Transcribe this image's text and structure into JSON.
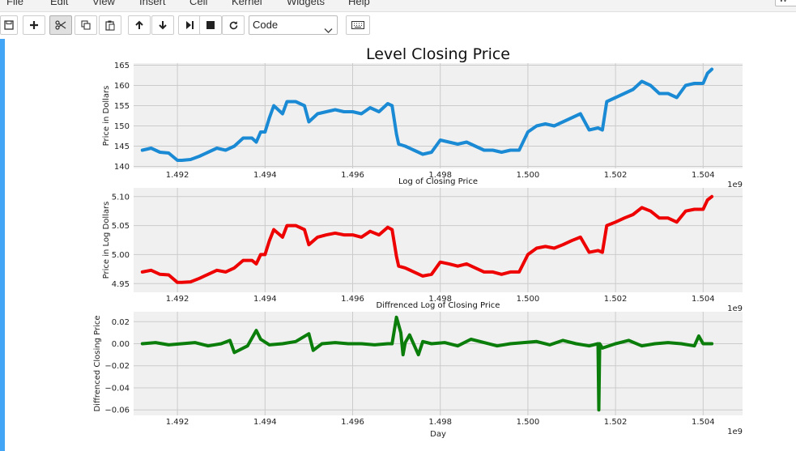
{
  "menu": {
    "items": [
      "File",
      "Edit",
      "View",
      "Insert",
      "Cell",
      "Kernel",
      "Widgets",
      "Help"
    ],
    "kernel_indicator": "W"
  },
  "toolbar": {
    "buttons": [
      "save-icon",
      "plus-icon",
      "cut-icon",
      "copy-icon",
      "paste-icon",
      "arrow-up-icon",
      "arrow-down-icon",
      "step-forward-icon",
      "stop-icon",
      "restart-icon",
      "keyboard-icon"
    ],
    "cell_type": "Code"
  },
  "colors": {
    "panel1": "#1a8ad4",
    "panel2": "#ee0000",
    "panel3": "#0a7d0a",
    "axes_bg": "#f0f0f0",
    "grid": "#cbcbcb",
    "cell_bar": "#42a5f5"
  },
  "chart_data": [
    {
      "type": "line",
      "title": "Level Closing Price",
      "xlabel": "",
      "ylabel": "Price in Dollars",
      "x_offset_label": "1e9",
      "xlim": [
        1491000000,
        1504900000
      ],
      "ylim": [
        139.5,
        165.5
      ],
      "xticks": [
        1492000000,
        1494000000,
        1496000000,
        1498000000,
        1500000000,
        1502000000,
        1504000000
      ],
      "xtick_labels": [
        "1.492",
        "1.494",
        "1.496",
        "1.498",
        "1.500",
        "1.502",
        "1.504"
      ],
      "yticks": [
        140,
        145,
        150,
        155,
        160,
        165
      ],
      "ytick_labels": [
        "140",
        "145",
        "150",
        "155",
        "160",
        "165"
      ],
      "grid": true,
      "x": [
        1491200000,
        1491400000,
        1491600000,
        1491800000,
        1492000000,
        1492100000,
        1492300000,
        1492500000,
        1492700000,
        1492900000,
        1493100000,
        1493300000,
        1493500000,
        1493700000,
        1493800000,
        1493900000,
        1494000000,
        1494100000,
        1494200000,
        1494400000,
        1494500000,
        1494700000,
        1494900000,
        1495000000,
        1495200000,
        1495400000,
        1495600000,
        1495800000,
        1496000000,
        1496200000,
        1496400000,
        1496600000,
        1496800000,
        1496900000,
        1497000000,
        1497050000,
        1497200000,
        1497400000,
        1497600000,
        1497800000,
        1498000000,
        1498200000,
        1498400000,
        1498600000,
        1498800000,
        1499000000,
        1499200000,
        1499400000,
        1499600000,
        1499800000,
        1500000000,
        1500200000,
        1500400000,
        1500600000,
        1500800000,
        1501000000,
        1501200000,
        1501400000,
        1501600000,
        1501700000,
        1501800000,
        1502000000,
        1502200000,
        1502400000,
        1502600000,
        1502800000,
        1503000000,
        1503200000,
        1503400000,
        1503600000,
        1503800000,
        1504000000,
        1504100000,
        1504200000
      ],
      "series": [
        {
          "name": "",
          "values": [
            144,
            144.5,
            143.5,
            143.3,
            141.5,
            141.5,
            141.7,
            142.5,
            143.5,
            144.5,
            144,
            145,
            147,
            147,
            146,
            148.5,
            148.5,
            152,
            155,
            153,
            156,
            156,
            155,
            151,
            153,
            153.5,
            154,
            153.5,
            153.5,
            153,
            154.5,
            153.5,
            155.5,
            155,
            148,
            145.5,
            145,
            144,
            143,
            143.5,
            146.5,
            146,
            145.5,
            146,
            145,
            144,
            144,
            143.5,
            144,
            144,
            148.5,
            150,
            150.5,
            150,
            151,
            152,
            153,
            149,
            149.5,
            149,
            156,
            157,
            158,
            159,
            161,
            160,
            158,
            158,
            157,
            160,
            160.5,
            160.5,
            163,
            164
          ]
        }
      ]
    },
    {
      "type": "line",
      "title": "Log of Closing Price",
      "xlabel": "",
      "ylabel": "Price in Log Dollars",
      "x_offset_label": "1e9",
      "xlim": [
        1491000000,
        1504900000
      ],
      "ylim": [
        4.935,
        5.115
      ],
      "xticks": [
        1492000000,
        1494000000,
        1496000000,
        1498000000,
        1500000000,
        1502000000,
        1504000000
      ],
      "xtick_labels": [
        "1.492",
        "1.494",
        "1.496",
        "1.498",
        "1.500",
        "1.502",
        "1.504"
      ],
      "yticks": [
        4.95,
        5.0,
        5.05,
        5.1
      ],
      "ytick_labels": [
        "4.95",
        "5.00",
        "5.05",
        "5.10"
      ],
      "grid": true,
      "x": [
        1491200000,
        1491400000,
        1491600000,
        1491800000,
        1492000000,
        1492100000,
        1492300000,
        1492500000,
        1492700000,
        1492900000,
        1493100000,
        1493300000,
        1493500000,
        1493700000,
        1493800000,
        1493900000,
        1494000000,
        1494100000,
        1494200000,
        1494400000,
        1494500000,
        1494700000,
        1494900000,
        1495000000,
        1495200000,
        1495400000,
        1495600000,
        1495800000,
        1496000000,
        1496200000,
        1496400000,
        1496600000,
        1496800000,
        1496900000,
        1497000000,
        1497050000,
        1497200000,
        1497400000,
        1497600000,
        1497800000,
        1498000000,
        1498200000,
        1498400000,
        1498600000,
        1498800000,
        1499000000,
        1499200000,
        1499400000,
        1499600000,
        1499800000,
        1500000000,
        1500200000,
        1500400000,
        1500600000,
        1500800000,
        1501000000,
        1501200000,
        1501400000,
        1501600000,
        1501700000,
        1501800000,
        1502000000,
        1502200000,
        1502400000,
        1502600000,
        1502800000,
        1503000000,
        1503200000,
        1503400000,
        1503600000,
        1503800000,
        1504000000,
        1504100000,
        1504200000
      ],
      "series": [
        {
          "name": "",
          "values": [
            4.97,
            4.973,
            4.966,
            4.965,
            4.952,
            4.952,
            4.953,
            4.959,
            4.966,
            4.973,
            4.97,
            4.977,
            4.99,
            4.99,
            4.984,
            5.0,
            5.0,
            5.024,
            5.043,
            5.03,
            5.05,
            5.05,
            5.043,
            5.017,
            5.03,
            5.034,
            5.037,
            5.034,
            5.034,
            5.03,
            5.04,
            5.034,
            5.047,
            5.043,
            4.997,
            4.98,
            4.977,
            4.97,
            4.963,
            4.966,
            4.987,
            4.984,
            4.98,
            4.984,
            4.977,
            4.97,
            4.97,
            4.966,
            4.97,
            4.97,
            5.0,
            5.011,
            5.014,
            5.011,
            5.017,
            5.024,
            5.03,
            5.004,
            5.007,
            5.004,
            5.05,
            5.056,
            5.063,
            5.069,
            5.081,
            5.075,
            5.063,
            5.063,
            5.056,
            5.075,
            5.078,
            5.078,
            5.094,
            5.1
          ]
        }
      ]
    },
    {
      "type": "line",
      "title": "Diffrenced Log of Closing Price",
      "xlabel": "Day",
      "ylabel": "Diffrenced Closing Price",
      "x_offset_label": "1e9",
      "xlim": [
        1491000000,
        1504900000
      ],
      "ylim": [
        -0.065,
        0.029
      ],
      "xticks": [
        1492000000,
        1494000000,
        1496000000,
        1498000000,
        1500000000,
        1502000000,
        1504000000
      ],
      "xtick_labels": [
        "1.492",
        "1.494",
        "1.496",
        "1.498",
        "1.500",
        "1.502",
        "1.504"
      ],
      "yticks": [
        -0.06,
        -0.04,
        -0.02,
        0.0,
        0.02
      ],
      "ytick_labels": [
        "−0.06",
        "−0.04",
        "−0.02",
        "0.00",
        "0.02"
      ],
      "grid": true,
      "x": [
        1491200000,
        1491500000,
        1491800000,
        1492100000,
        1492400000,
        1492700000,
        1493000000,
        1493200000,
        1493300000,
        1493600000,
        1493800000,
        1493900000,
        1494100000,
        1494400000,
        1494700000,
        1495000000,
        1495100000,
        1495300000,
        1495600000,
        1495900000,
        1496200000,
        1496500000,
        1496800000,
        1496900000,
        1497000000,
        1497100000,
        1497150000,
        1497200000,
        1497300000,
        1497500000,
        1497600000,
        1497800000,
        1498100000,
        1498400000,
        1498700000,
        1499000000,
        1499300000,
        1499600000,
        1499900000,
        1500200000,
        1500500000,
        1500800000,
        1501100000,
        1501400000,
        1501600000,
        1501620000,
        1501640000,
        1501700000,
        1502000000,
        1502300000,
        1502600000,
        1502900000,
        1503200000,
        1503500000,
        1503800000,
        1503900000,
        1504000000,
        1504200000
      ],
      "series": [
        {
          "name": "",
          "values": [
            0.0,
            0.001,
            -0.001,
            0.0,
            0.001,
            -0.002,
            0.0,
            0.003,
            -0.008,
            -0.002,
            0.012,
            0.004,
            -0.001,
            0.0,
            0.002,
            0.009,
            -0.006,
            0.0,
            0.001,
            0.0,
            0.0,
            -0.001,
            0.0,
            0.0,
            0.024,
            0.01,
            -0.01,
            0.001,
            0.008,
            -0.01,
            0.002,
            0.0,
            0.001,
            -0.002,
            0.004,
            0.001,
            -0.002,
            0.0,
            0.001,
            0.002,
            -0.001,
            0.003,
            0.0,
            -0.002,
            0.0,
            -0.06,
            0.0,
            -0.004,
            0.0,
            0.003,
            -0.002,
            0.0,
            0.001,
            0.0,
            -0.002,
            0.007,
            0.0,
            0.0
          ]
        }
      ]
    }
  ]
}
